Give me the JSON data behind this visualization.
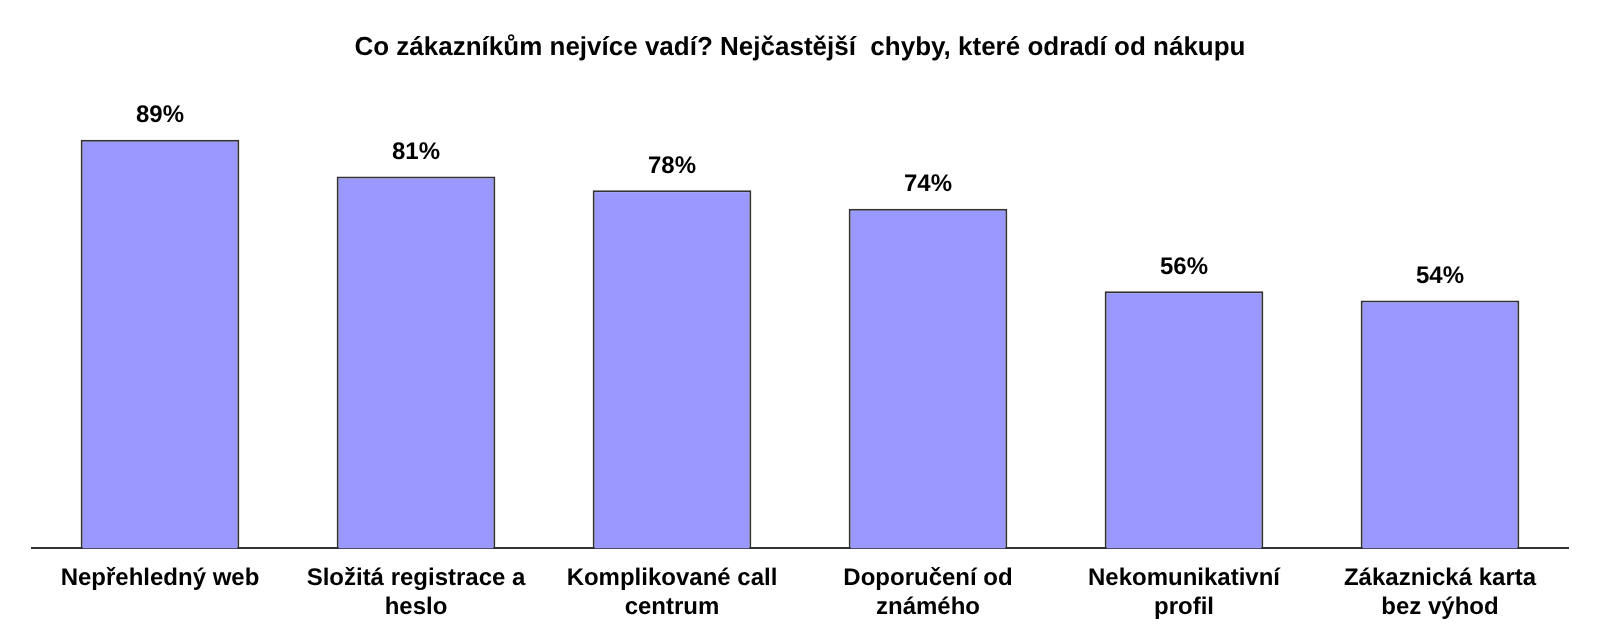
{
  "chart_data": {
    "type": "bar",
    "title": "Co zákazníkům nejvíce vadí? Nejčastější  chyby, které odradí od nákupu",
    "categories": [
      "Nepřehledný web",
      "Složitá registrace a heslo",
      "Komplikované call centrum",
      "Doporučení od známého",
      "Nekomunikativní profil",
      "Zákaznická karta bez výhod"
    ],
    "values": [
      89,
      81,
      78,
      74,
      56,
      54
    ],
    "value_labels": [
      "89%",
      "81%",
      "78%",
      "74%",
      "56%",
      "54%"
    ],
    "color": "#9999ff",
    "grid": false,
    "legend": false
  }
}
